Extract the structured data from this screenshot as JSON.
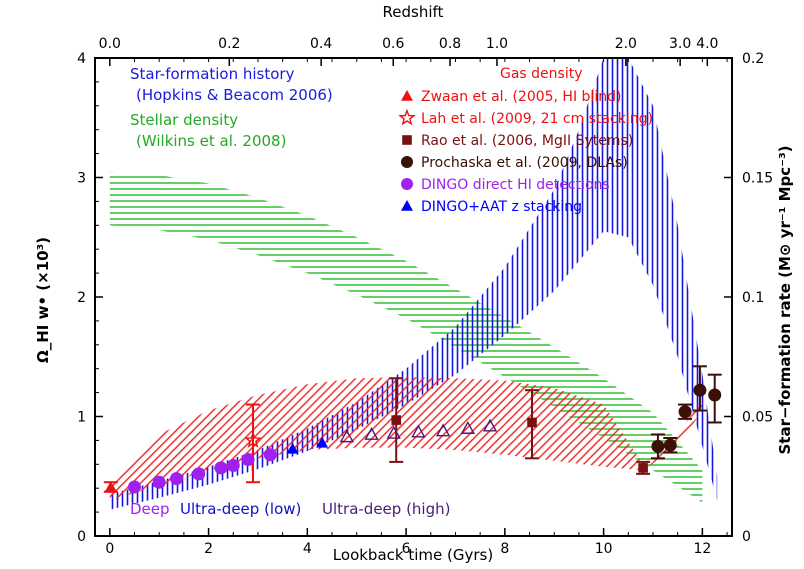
{
  "chart_data": {
    "type": "scatter",
    "xlabel": "Lookback time (Gyrs)",
    "ylabel_left": "Ω_HI w• (×10³)",
    "ylabel_right": "Star−formation rate (M⊙ yr⁻¹ Mpc⁻³)",
    "top_axis_label": "Redshift",
    "xlim": [
      -0.3,
      12.6
    ],
    "ylim": [
      0,
      4
    ],
    "ylim_right": [
      0,
      0.2
    ],
    "x_ticks": [
      0,
      2,
      4,
      6,
      8,
      10,
      12
    ],
    "y_ticks": [
      0,
      1,
      2,
      3,
      4
    ],
    "y_right_ticks": [
      "0",
      "0.05",
      "0.1",
      "0.15",
      "0.2"
    ],
    "top_ticks": [
      {
        "label": "0.0",
        "t": 0.0
      },
      {
        "label": "0.2",
        "t": 2.42
      },
      {
        "label": "0.4",
        "t": 4.28
      },
      {
        "label": "0.6",
        "t": 5.74
      },
      {
        "label": "0.8",
        "t": 6.89
      },
      {
        "label": "1.0",
        "t": 7.84
      },
      {
        "label": "2.0",
        "t": 10.45
      },
      {
        "label": "3.0",
        "t": 11.55
      },
      {
        "label": "4.0",
        "t": 12.1
      }
    ],
    "legend_left": {
      "sfh": "Star-formation history",
      "sfh_ref": "(Hopkins & Beacom 2006)",
      "stellar": "Stellar density",
      "stellar_ref": "(Wilkins et al. 2008)"
    },
    "legend_right": {
      "title": "Gas density",
      "entries": [
        {
          "label": "Zwaan et al. (2005, HI blind)",
          "color": "#ee1111",
          "marker": "triangle"
        },
        {
          "label": "Lah et al. (2009, 21 cm stacking)",
          "color": "#ee1111",
          "marker": "star"
        },
        {
          "label": "Rao et al. (2006, MgII Sytems)",
          "color": "#7a1010",
          "marker": "square"
        },
        {
          "label": "Prochaska et al. (2009, DLAs)",
          "color": "#3a1008",
          "marker": "circle"
        },
        {
          "label": "DINGO direct HI detections",
          "color": "#a020f0",
          "marker": "circle"
        },
        {
          "label": "DINGO+AAT z stacking",
          "color": "#0000ff",
          "marker": "triangle"
        }
      ]
    },
    "bottom_labels": [
      {
        "text": "Deep",
        "color": "#a020f0"
      },
      {
        "text": "Ultra-deep (low)",
        "color": "#1010cc"
      },
      {
        "text": "Ultra-deep (high)",
        "color": "#4b1a7a"
      }
    ],
    "stellar_band": {
      "t": [
        0,
        1,
        2,
        3,
        4,
        5,
        6,
        7,
        8,
        9,
        10,
        11,
        12
      ],
      "lower": [
        2.6,
        2.56,
        2.48,
        2.35,
        2.2,
        2.02,
        1.82,
        1.58,
        1.33,
        1.08,
        0.82,
        0.55,
        0.28
      ],
      "upper": [
        3.05,
        3.02,
        2.95,
        2.83,
        2.68,
        2.5,
        2.3,
        2.07,
        1.83,
        1.58,
        1.32,
        1.03,
        0.55
      ]
    },
    "sfh_band": {
      "t": [
        0,
        1,
        2,
        3,
        4,
        5,
        6,
        7,
        8,
        9,
        9.5,
        10,
        10.5,
        11,
        11.5,
        12,
        12.3
      ],
      "lower": [
        0.22,
        0.32,
        0.43,
        0.56,
        0.71,
        0.89,
        1.1,
        1.35,
        1.68,
        2.05,
        2.3,
        2.55,
        2.5,
        2.1,
        1.5,
        0.75,
        0.3
      ],
      "upper": [
        0.35,
        0.46,
        0.58,
        0.72,
        0.9,
        1.12,
        1.4,
        1.75,
        2.25,
        2.9,
        3.4,
        4.0,
        4.0,
        3.6,
        2.6,
        1.35,
        0.5
      ]
    },
    "gas_band": {
      "t": [
        0,
        1,
        2,
        3,
        4,
        5,
        6,
        7,
        8,
        9,
        10,
        10.8,
        11.5,
        12
      ],
      "lower": [
        0.3,
        0.42,
        0.55,
        0.65,
        0.72,
        0.74,
        0.74,
        0.72,
        0.68,
        0.63,
        0.58,
        0.55,
        0.75,
        1.05
      ],
      "upper": [
        0.45,
        0.85,
        1.05,
        1.18,
        1.27,
        1.32,
        1.33,
        1.32,
        1.3,
        1.24,
        1.1,
        0.6,
        0.85,
        1.15
      ]
    },
    "series": [
      {
        "name": "Zwaan et al. (2005, HI blind)",
        "color": "#ee1111",
        "marker": "triangle",
        "points": [
          {
            "x": 0.02,
            "y": 0.41,
            "ylo": 0.37,
            "yhi": 0.45
          }
        ]
      },
      {
        "name": "Lah et al. (2009, 21 cm stacking)",
        "color": "#ee1111",
        "marker": "star",
        "points": [
          {
            "x": 2.9,
            "y": 0.8,
            "ylo": 0.45,
            "yhi": 1.1
          }
        ]
      },
      {
        "name": "Rao et al. (2006, MgII Sytems)",
        "color": "#7a1010",
        "marker": "square",
        "points": [
          {
            "x": 5.8,
            "y": 0.97,
            "ylo": 0.62,
            "yhi": 1.32
          },
          {
            "x": 8.55,
            "y": 0.95,
            "ylo": 0.65,
            "yhi": 1.22
          },
          {
            "x": 10.8,
            "y": 0.57,
            "ylo": 0.52,
            "yhi": 0.62
          }
        ]
      },
      {
        "name": "Prochaska et al. (2009, DLAs)",
        "color": "#3a1008",
        "marker": "circle",
        "points": [
          {
            "x": 11.1,
            "y": 0.75,
            "ylo": 0.65,
            "yhi": 0.85
          },
          {
            "x": 11.35,
            "y": 0.76,
            "ylo": 0.7,
            "yhi": 0.82
          },
          {
            "x": 11.65,
            "y": 1.04,
            "ylo": 0.98,
            "yhi": 1.1
          },
          {
            "x": 11.95,
            "y": 1.22,
            "ylo": 1.05,
            "yhi": 1.42
          },
          {
            "x": 12.25,
            "y": 1.18,
            "ylo": 0.95,
            "yhi": 1.35
          }
        ]
      },
      {
        "name": "DINGO direct HI detections",
        "color": "#a020f0",
        "marker": "circle",
        "points": [
          {
            "x": 0.5,
            "y": 0.41
          },
          {
            "x": 1.0,
            "y": 0.45
          },
          {
            "x": 1.35,
            "y": 0.48
          },
          {
            "x": 1.8,
            "y": 0.52
          },
          {
            "x": 2.25,
            "y": 0.57
          },
          {
            "x": 2.5,
            "y": 0.59
          },
          {
            "x": 2.8,
            "y": 0.64
          },
          {
            "x": 3.25,
            "y": 0.68
          }
        ]
      },
      {
        "name": "DINGO+AAT z stacking",
        "color": "#0000ff",
        "marker": "triangle",
        "points": [
          {
            "x": 3.7,
            "y": 0.73
          },
          {
            "x": 4.3,
            "y": 0.78
          }
        ]
      },
      {
        "name": "DINGO+AAT z stacking (predicted)",
        "color": "#4b1a7a",
        "marker": "open-triangle",
        "points": [
          {
            "x": 4.8,
            "y": 0.83
          },
          {
            "x": 5.3,
            "y": 0.85
          },
          {
            "x": 5.75,
            "y": 0.86
          },
          {
            "x": 6.25,
            "y": 0.87
          },
          {
            "x": 6.75,
            "y": 0.88
          },
          {
            "x": 7.25,
            "y": 0.9
          },
          {
            "x": 7.7,
            "y": 0.92
          }
        ]
      }
    ]
  }
}
